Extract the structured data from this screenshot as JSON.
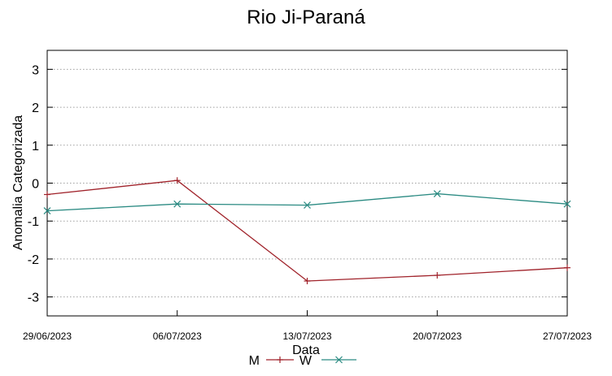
{
  "chart_data": {
    "type": "line",
    "title": "Rio Ji-Paraná",
    "xlabel": "Data",
    "ylabel": "Anomalia Categorizada",
    "x": [
      "29/06/2023",
      "06/07/2023",
      "13/07/2023",
      "20/07/2023",
      "27/07/2023"
    ],
    "ylim": [
      -3.5,
      3.5
    ],
    "yticks": [
      -3,
      -2,
      -1,
      0,
      1,
      2,
      3
    ],
    "grid": true,
    "legend_position": "bottom",
    "series": [
      {
        "name": "M",
        "color": "#a0222a",
        "marker": "plus",
        "values": [
          -0.3,
          0.07,
          -2.58,
          -2.43,
          -2.23
        ]
      },
      {
        "name": "W",
        "color": "#2a8a82",
        "marker": "x",
        "values": [
          -0.73,
          -0.55,
          -0.58,
          -0.28,
          -0.55
        ]
      }
    ]
  }
}
